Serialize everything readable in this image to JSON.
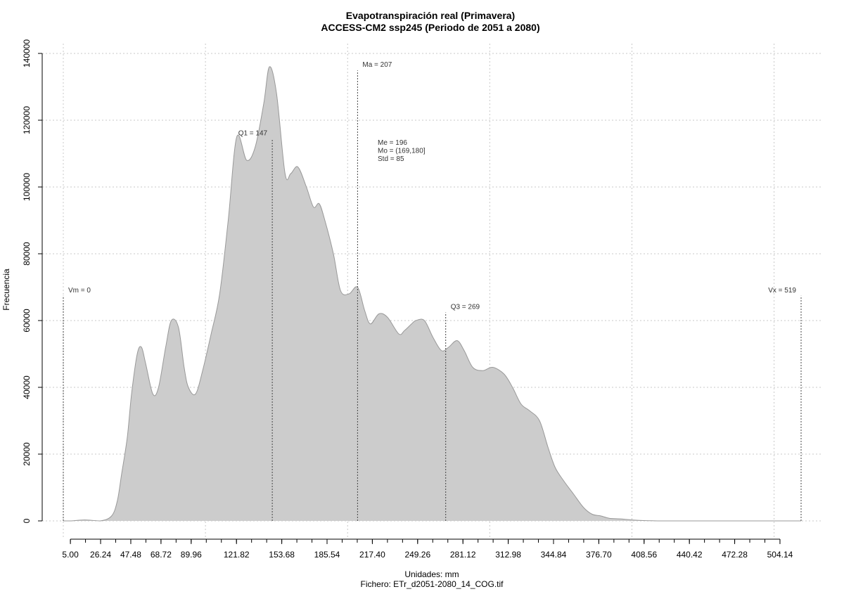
{
  "chart_data": {
    "type": "area",
    "title": "Evapotranspiración real (Primavera)",
    "subtitle": "ACCESS-CM2 ssp245 (Periodo de 2051 a 2080)",
    "xlabel": "Unidades: mm",
    "ylabel": "Frecuencia",
    "footer": "Fichero: ETr_d2051-2080_14_COG.tif",
    "xlim": [
      0,
      519
    ],
    "ylim": [
      0,
      140000
    ],
    "x_ticks": [
      5.0,
      26.24,
      47.48,
      68.72,
      89.96,
      121.82,
      153.68,
      185.54,
      217.4,
      249.26,
      281.12,
      312.98,
      344.84,
      376.7,
      408.56,
      440.42,
      472.28,
      504.14
    ],
    "x_tick_labels": [
      "5.00",
      "26.24",
      "47.48",
      "68.72",
      "89.96",
      "121.82",
      "153.68",
      "185.54",
      "217.40",
      "249.26",
      "281.12",
      "312.98",
      "344.84",
      "376.70",
      "408.56",
      "440.42",
      "472.28",
      "504.14"
    ],
    "y_ticks": [
      0,
      20000,
      40000,
      60000,
      80000,
      100000,
      120000,
      140000
    ],
    "y_tick_labels": [
      "0",
      "20000",
      "40000",
      "60000",
      "80000",
      "100000",
      "120000",
      "140000"
    ],
    "grid": true,
    "fill_color": "#cccccc",
    "line_color": "#999999",
    "series": [
      {
        "x": [
          0,
          5,
          15,
          26,
          34,
          38,
          41,
          45,
          48,
          52,
          55,
          58,
          63,
          67,
          72,
          76,
          81,
          85,
          88,
          93,
          98,
          104,
          110,
          116,
          122,
          129,
          135,
          141,
          145,
          150,
          156,
          160,
          165,
          171,
          176,
          180,
          184,
          190,
          195,
          201,
          207,
          212,
          216,
          222,
          228,
          236,
          240,
          245,
          248,
          254,
          260,
          266,
          271,
          277,
          282,
          288,
          295,
          302,
          310,
          316,
          322,
          328,
          335,
          341,
          346,
          352,
          359,
          366,
          372,
          378,
          384,
          392,
          400,
          408,
          414,
          420,
          430,
          445,
          470,
          500,
          519
        ],
        "y": [
          0,
          0,
          300,
          0,
          1500,
          6000,
          14000,
          25000,
          38000,
          50000,
          52000,
          47000,
          38000,
          40000,
          52000,
          60000,
          58000,
          46000,
          40000,
          38000,
          45000,
          56000,
          68000,
          90000,
          115000,
          108000,
          112000,
          125000,
          136000,
          128000,
          104000,
          104000,
          106000,
          100000,
          94000,
          95000,
          90000,
          80000,
          69000,
          68000,
          70000,
          63000,
          59000,
          62000,
          61000,
          56000,
          57000,
          59000,
          60000,
          60000,
          55000,
          51000,
          52000,
          54000,
          51000,
          46000,
          45000,
          46000,
          44000,
          40000,
          35000,
          33000,
          30000,
          22000,
          16000,
          12000,
          8000,
          4000,
          2000,
          1500,
          800,
          600,
          300,
          100,
          50,
          0,
          0,
          0,
          0,
          0,
          0
        ]
      }
    ],
    "annotations": [
      {
        "label": "Vm = 0",
        "x": 0,
        "y": 67000,
        "anchor": "start"
      },
      {
        "label": "Q1 = 147",
        "x": 147,
        "y": 114000,
        "anchor": "end"
      },
      {
        "label": "Ma = 207",
        "x": 207,
        "y": 134500,
        "anchor": "start"
      },
      {
        "label": "Q3 = 269",
        "x": 269,
        "y": 62000,
        "anchor": "start"
      },
      {
        "label": "Vx = 519",
        "x": 519,
        "y": 67000,
        "anchor": "end"
      }
    ],
    "stats_box": [
      "Me = 196",
      "Mo = (169,180]",
      "Std = 85"
    ]
  }
}
